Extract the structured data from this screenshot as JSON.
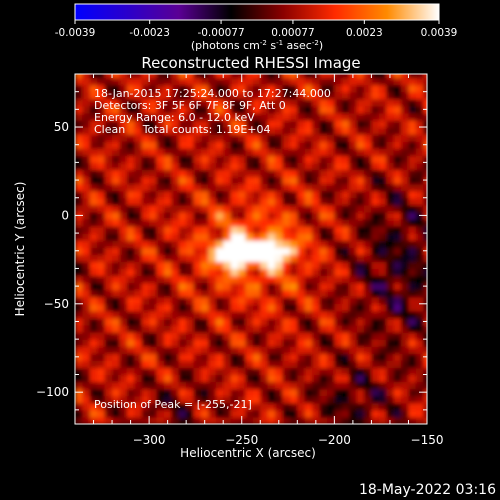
{
  "chart_data": {
    "type": "heatmap",
    "title": "Reconstructed RHESSI Image",
    "colorbar": {
      "colormap": [
        "#0000ff",
        "#2a00cc",
        "#5a0094",
        "#000000",
        "#8a0000",
        "#ff2a00",
        "#ff8a00",
        "#ffffff"
      ],
      "vmin": -0.0039,
      "vmax": 0.0039,
      "tick_labels": [
        "-0.0039",
        "-0.0023",
        "-0.00077",
        "0.00077",
        "0.0023",
        "0.0039"
      ],
      "tick_values": [
        -0.0039,
        -0.0023,
        -0.00077,
        0.00077,
        0.0023,
        0.0039
      ],
      "unit_label_parts": [
        "(photons cm",
        "-2",
        " s",
        "-1",
        " asec",
        "-2",
        ")"
      ]
    },
    "xlabel": "Heliocentric X (arcsec)",
    "ylabel": "Heliocentric Y (arcsec)",
    "xlim": [
      -340,
      -150
    ],
    "ylim": [
      -118,
      80
    ],
    "x_ticks": [
      -300,
      -250,
      -200,
      -150
    ],
    "x_tick_labels": [
      "−300",
      "−250",
      "−200",
      "−150"
    ],
    "y_ticks": [
      -100,
      -50,
      0,
      50
    ],
    "y_tick_labels": [
      "−100",
      "−50",
      "0",
      "50"
    ],
    "annotations": [
      "18-Jan-2015 17:25:24.000 to 17:27:44.000",
      "Detectors: 3F 5F 6F 7F 8F 9F, Att 0",
      "Energy Range: 6.0 - 12.0 keV",
      "Clean     Total counts: 1.19E+04"
    ],
    "peak_annotation": "Position of Peak = [-255,-21]",
    "peak": {
      "x": -255,
      "y": -21,
      "intensity": 0.0039
    },
    "secondary_source": {
      "x": -235,
      "y": -20,
      "intensity": 0.0032
    },
    "background_level": 0.0009,
    "negative_region": {
      "x": -165,
      "y": -30,
      "intensity": -0.0012
    }
  },
  "footer_timestamp": "18-May-2022 03:16"
}
